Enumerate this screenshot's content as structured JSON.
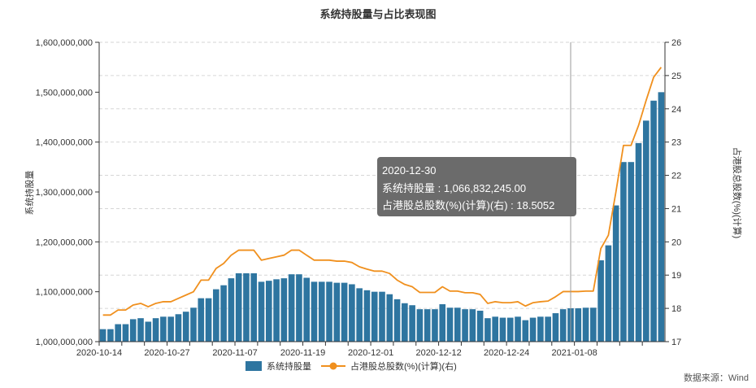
{
  "chart_data": {
    "type": "bar",
    "title": "系统持股量与占比表现图",
    "ylabel_left": "系统持股量",
    "ylabel_right": "占港股总股数(%)(计算)",
    "source": "数据来源：Wind",
    "ylim_left": [
      1000000000,
      1600000000
    ],
    "ylim_right": [
      17,
      26
    ],
    "left_ticks": [
      "1,000,000,000",
      "1,100,000,000",
      "1,200,000,000",
      "1,300,000,000",
      "1,400,000,000",
      "1,500,000,000",
      "1,600,000,000"
    ],
    "right_ticks": [
      "17",
      "18",
      "19",
      "20",
      "21",
      "22",
      "23",
      "24",
      "25",
      "26"
    ],
    "x_ticks": [
      {
        "index": 0,
        "label": "2020-10-14"
      },
      {
        "index": 9,
        "label": "2020-10-27"
      },
      {
        "index": 18,
        "label": "2020-11-07"
      },
      {
        "index": 27,
        "label": "2020-11-19"
      },
      {
        "index": 36,
        "label": "2020-12-01"
      },
      {
        "index": 45,
        "label": "2020-12-12"
      },
      {
        "index": 54,
        "label": "2020-12-24"
      },
      {
        "index": 63,
        "label": "2021-01-08"
      }
    ],
    "grid": true,
    "legend_position": "bottom",
    "series": [
      {
        "name": "系统持股量",
        "type": "bar",
        "axis": "left",
        "color": "#2e75a0",
        "values": [
          1025000000,
          1025000000,
          1035000000,
          1035000000,
          1045000000,
          1047000000,
          1040000000,
          1047000000,
          1050000000,
          1050000000,
          1055000000,
          1060000000,
          1068000000,
          1087000000,
          1087000000,
          1105000000,
          1113000000,
          1127000000,
          1137000000,
          1137000000,
          1137000000,
          1120000000,
          1122000000,
          1125000000,
          1127000000,
          1135000000,
          1135000000,
          1128000000,
          1120000000,
          1120000000,
          1120000000,
          1118000000,
          1118000000,
          1115000000,
          1107000000,
          1103000000,
          1100000000,
          1100000000,
          1095000000,
          1085000000,
          1077000000,
          1073000000,
          1065000000,
          1065000000,
          1065000000,
          1075000000,
          1068000000,
          1068000000,
          1065000000,
          1065000000,
          1062000000,
          1047000000,
          1050000000,
          1048000000,
          1048000000,
          1050000000,
          1043000000,
          1048000000,
          1050000000,
          1050000000,
          1057000000,
          1065000000,
          1066832245,
          1066832245,
          1068000000,
          1068000000,
          1163000000,
          1193000000,
          1273000000,
          1360000000,
          1360000000,
          1398000000,
          1443000000,
          1483000000,
          1500000000
        ]
      },
      {
        "name": "占港股总股数(%)(计算)(右)",
        "type": "line",
        "axis": "right",
        "color": "#f0901e",
        "values": [
          17.8,
          17.8,
          17.95,
          17.95,
          18.1,
          18.15,
          18.05,
          18.15,
          18.2,
          18.2,
          18.3,
          18.4,
          18.5,
          18.85,
          18.85,
          19.2,
          19.35,
          19.6,
          19.75,
          19.75,
          19.75,
          19.45,
          19.5,
          19.55,
          19.6,
          19.75,
          19.75,
          19.6,
          19.45,
          19.45,
          19.45,
          19.42,
          19.42,
          19.38,
          19.25,
          19.18,
          19.12,
          19.12,
          19.05,
          18.85,
          18.72,
          18.65,
          18.48,
          18.48,
          18.48,
          18.65,
          18.52,
          18.52,
          18.47,
          18.47,
          18.42,
          18.15,
          18.2,
          18.17,
          18.17,
          18.2,
          18.07,
          18.17,
          18.2,
          18.22,
          18.35,
          18.5052,
          18.5052,
          18.5052,
          18.52,
          18.52,
          19.8,
          20.2,
          21.5,
          22.9,
          22.9,
          23.5,
          24.25,
          24.95,
          25.25
        ]
      }
    ],
    "tooltip": {
      "date": "2020-12-30",
      "line1_label": "系统持股量",
      "line1_value": "1,066,832,245.00",
      "line2_label": "占港股总股数(%)(计算)(右)",
      "line2_value": "18.5052",
      "line1": "系统持股量 : 1,066,832,245.00",
      "line2": "占港股总股数(%)(计算)(右) : 18.5052",
      "index": 62
    }
  }
}
